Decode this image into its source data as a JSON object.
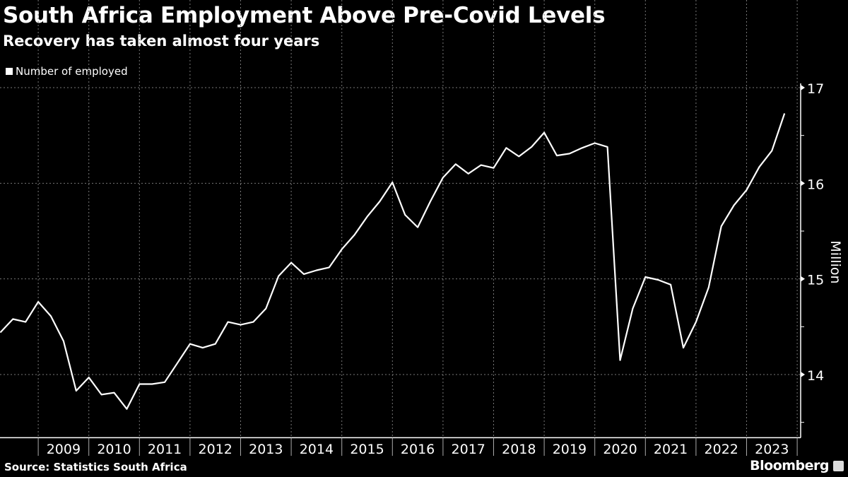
{
  "header": {
    "title": "South Africa Employment Above Pre-Covid Levels",
    "subtitle": "Recovery has taken almost four years"
  },
  "footer": {
    "source": "Source: Statistics South Africa",
    "brand": "Bloomberg"
  },
  "colors": {
    "background": "#000000",
    "line": "#ffffff",
    "grid": "#888888"
  },
  "chart_data": {
    "type": "line",
    "title": "South Africa Employment Above Pre-Covid Levels",
    "subtitle": "Recovery has taken almost four years",
    "ylabel": "Million",
    "ylim": [
      13.34,
      17
    ],
    "yticks": [
      14,
      15,
      16,
      17
    ],
    "y_axis_side": "right",
    "grid": true,
    "legend_placement": "top-left",
    "x_start": "2008 Q1",
    "x_end": "2023 Q3",
    "frequency": "quarterly",
    "xtick_labels": [
      "2009",
      "2010",
      "2011",
      "2012",
      "2013",
      "2014",
      "2015",
      "2016",
      "2017",
      "2018",
      "2019",
      "2020",
      "2021",
      "2022",
      "2023"
    ],
    "series": [
      {
        "name": "Number of employed",
        "values": [
          14.44,
          14.58,
          14.55,
          14.76,
          14.61,
          14.35,
          13.83,
          13.97,
          13.79,
          13.81,
          13.64,
          13.9,
          13.9,
          13.92,
          14.12,
          14.32,
          14.28,
          14.32,
          14.55,
          14.52,
          14.55,
          14.69,
          15.03,
          15.17,
          15.05,
          15.09,
          15.12,
          15.31,
          15.46,
          15.65,
          15.81,
          16.01,
          15.67,
          15.54,
          15.81,
          16.06,
          16.2,
          16.1,
          16.19,
          16.16,
          16.37,
          16.28,
          16.38,
          16.53,
          16.29,
          16.31,
          16.37,
          16.42,
          16.38,
          14.15,
          14.69,
          15.02,
          14.99,
          14.94,
          14.28,
          14.55,
          14.91,
          15.55,
          15.77,
          15.93,
          16.17,
          16.34,
          16.73
        ]
      }
    ]
  }
}
